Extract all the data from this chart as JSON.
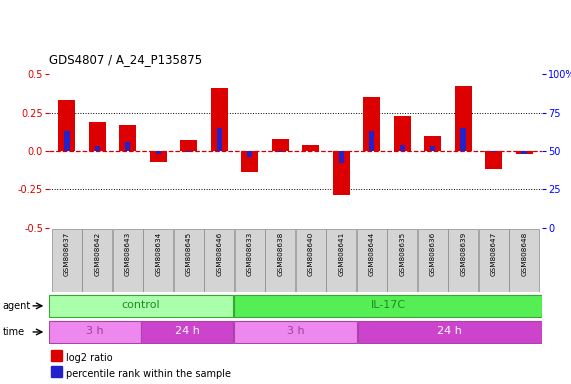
{
  "title": "GDS4807 / A_24_P135875",
  "samples": [
    "GSM808637",
    "GSM808642",
    "GSM808643",
    "GSM808634",
    "GSM808645",
    "GSM808646",
    "GSM808633",
    "GSM808638",
    "GSM808640",
    "GSM808641",
    "GSM808644",
    "GSM808635",
    "GSM808636",
    "GSM808639",
    "GSM808647",
    "GSM808648"
  ],
  "log2_ratio": [
    0.33,
    0.19,
    0.17,
    -0.07,
    0.07,
    0.41,
    -0.14,
    0.08,
    0.04,
    -0.29,
    0.35,
    0.23,
    0.1,
    0.42,
    -0.12,
    -0.02
  ],
  "percentile_rank_scaled": [
    0.13,
    0.03,
    0.06,
    -0.02,
    -0.01,
    0.15,
    -0.04,
    -0.01,
    0.0,
    -0.08,
    0.13,
    0.04,
    0.03,
    0.15,
    -0.01,
    -0.02
  ],
  "ylim": [
    -0.5,
    0.5
  ],
  "yticks_left": [
    -0.5,
    -0.25,
    0.0,
    0.25,
    0.5
  ],
  "yticks_right_vals": [
    0,
    25,
    50,
    75,
    100
  ],
  "yticks_right_labels": [
    "0",
    "25",
    "50",
    "75",
    "100%"
  ],
  "bar_color_red": "#dd0000",
  "bar_color_blue": "#2222cc",
  "zero_line_color": "#cc0000",
  "dotted_line_color": "#000000",
  "agent_control_color": "#aaffaa",
  "agent_il17c_color": "#55ee55",
  "time_3h_color": "#ee88ee",
  "time_24h_color": "#cc44cc",
  "agent_label": "agent",
  "time_label": "time",
  "control_label": "control",
  "il17c_label": "IL-17C",
  "time_3h_label": "3 h",
  "time_24h_label": "24 h",
  "legend_red": "log2 ratio",
  "legend_blue": "percentile rank within the sample",
  "n_control": 6,
  "n_il17c": 10,
  "control_3h": 3,
  "control_24h": 3,
  "il17c_3h": 4,
  "il17c_24h": 6
}
